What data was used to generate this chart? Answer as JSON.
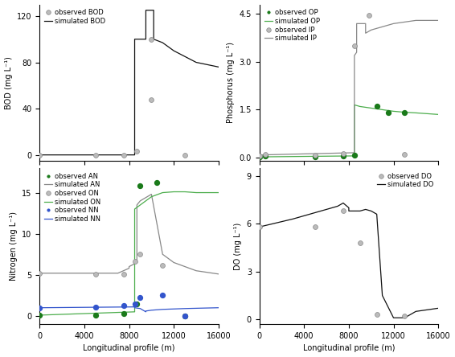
{
  "BOD": {
    "obs_x": [
      0,
      5000,
      7500,
      8700,
      10000,
      13000
    ],
    "obs_y": [
      0,
      0,
      0,
      3,
      48,
      0
    ],
    "sim_x": [
      0,
      8500,
      8501,
      9500,
      9501,
      10200,
      10201,
      11000,
      12000,
      13000,
      14000,
      16000
    ],
    "sim_y": [
      0,
      0,
      100,
      100,
      125,
      125,
      100,
      97,
      90,
      85,
      80,
      76
    ],
    "obs_highlight_x": [
      10000
    ],
    "obs_highlight_y": [
      100
    ],
    "ylim": [
      -5,
      130
    ],
    "yticks": [
      0,
      40,
      80,
      120
    ],
    "ylabel": "BOD (mg L⁻¹)"
  },
  "Phosphorus": {
    "obs_OP_x": [
      0,
      500,
      5000,
      7500,
      8500,
      10500,
      11500,
      13000
    ],
    "obs_OP_y": [
      0.02,
      0.05,
      0.02,
      0.05,
      0.08,
      1.6,
      1.4,
      1.4
    ],
    "sim_OP_x": [
      0,
      8500,
      8501,
      9000,
      10000,
      11000,
      12000,
      13000,
      14000,
      16000
    ],
    "sim_OP_y": [
      0.02,
      0.05,
      1.65,
      1.6,
      1.55,
      1.5,
      1.45,
      1.42,
      1.4,
      1.35
    ],
    "obs_IP_x": [
      0,
      500,
      5000,
      7500,
      8500,
      9800,
      13000
    ],
    "obs_IP_y": [
      0.05,
      0.1,
      0.08,
      0.12,
      3.5,
      4.45,
      0.1
    ],
    "sim_IP_x": [
      0,
      8500,
      8501,
      8700,
      8701,
      9500,
      9501,
      10000,
      11000,
      12000,
      13000,
      14000,
      16000
    ],
    "sim_IP_y": [
      0.08,
      0.15,
      3.2,
      3.3,
      4.2,
      4.2,
      3.9,
      4.0,
      4.1,
      4.2,
      4.25,
      4.3,
      4.3
    ],
    "ylim": [
      -0.1,
      4.8
    ],
    "yticks": [
      0.0,
      1.5,
      3.0,
      4.5
    ],
    "ylabel": "Phosphorus (mg L⁻¹)"
  },
  "Nitrogen": {
    "obs_AN_x": [
      0,
      5000,
      7500,
      8700,
      9000,
      10500,
      13000
    ],
    "obs_AN_y": [
      0.05,
      0.1,
      0.3,
      1.5,
      15.8,
      16.2,
      0
    ],
    "sim_AN_x": [
      0,
      7000,
      7500,
      8000,
      8001,
      8700,
      8701,
      9000,
      10000,
      11000,
      12000,
      13000,
      14000,
      16000
    ],
    "sim_AN_y": [
      5.2,
      5.2,
      5.5,
      5.8,
      6.0,
      6.5,
      13.5,
      14.0,
      14.8,
      7.5,
      6.5,
      6.0,
      5.5,
      5.1
    ],
    "obs_ON_x": [
      0,
      5000,
      7500,
      8500,
      9000,
      11000,
      13000
    ],
    "obs_ON_y": [
      5.2,
      5.1,
      5.1,
      6.6,
      7.5,
      6.2,
      0
    ],
    "sim_ON_x": [
      0,
      8500,
      8501,
      9000,
      10000,
      11000,
      12000,
      13000,
      14000,
      16000
    ],
    "sim_ON_y": [
      0.1,
      0.5,
      13.0,
      13.5,
      14.5,
      15.0,
      15.1,
      15.1,
      15.0,
      15.0
    ],
    "obs_NN_x": [
      0,
      5000,
      7500,
      8500,
      9000,
      11000,
      13000
    ],
    "obs_NN_y": [
      1.0,
      1.1,
      1.3,
      1.5,
      2.2,
      2.5,
      0
    ],
    "sim_NN_x": [
      0,
      8500,
      8501,
      9000,
      9500,
      9501,
      10000,
      11000,
      12000,
      13000,
      16000
    ],
    "sim_NN_y": [
      1.0,
      1.1,
      1.0,
      0.9,
      0.5,
      0.6,
      0.7,
      0.8,
      0.85,
      0.9,
      1.0
    ],
    "ylim": [
      -1,
      18
    ],
    "yticks": [
      0,
      5,
      10,
      15
    ],
    "ylabel": "Nitrogen (mg L⁻¹)"
  },
  "DO": {
    "obs_x": [
      0,
      5000,
      7500,
      9000,
      10500,
      13000
    ],
    "obs_y": [
      5.8,
      5.8,
      6.8,
      4.8,
      0.3,
      0.2
    ],
    "sim_x": [
      0,
      3000,
      6000,
      7000,
      7500,
      8000,
      8001,
      9000,
      9500,
      10000,
      10500,
      11000,
      11500,
      12000,
      13000,
      14000,
      16000
    ],
    "sim_y": [
      5.8,
      6.3,
      6.9,
      7.1,
      7.3,
      7.0,
      6.8,
      6.8,
      6.9,
      6.8,
      6.6,
      1.5,
      0.8,
      0.1,
      0.1,
      0.5,
      0.7
    ],
    "ylim": [
      -0.3,
      9.5
    ],
    "yticks": [
      0,
      3,
      6,
      9
    ],
    "ylabel": "DO (mg L⁻¹)"
  },
  "colors": {
    "dark_green": "#1a7a1a",
    "light_green": "#4cad4c",
    "sim_AN_grey": "#888888",
    "blue": "#3355cc",
    "black": "#111111",
    "obs_grey_face": "#bbbbbb",
    "obs_grey_edge": "#888888"
  },
  "xlim": [
    0,
    16000
  ],
  "xticks": [
    0,
    4000,
    8000,
    12000,
    16000
  ]
}
